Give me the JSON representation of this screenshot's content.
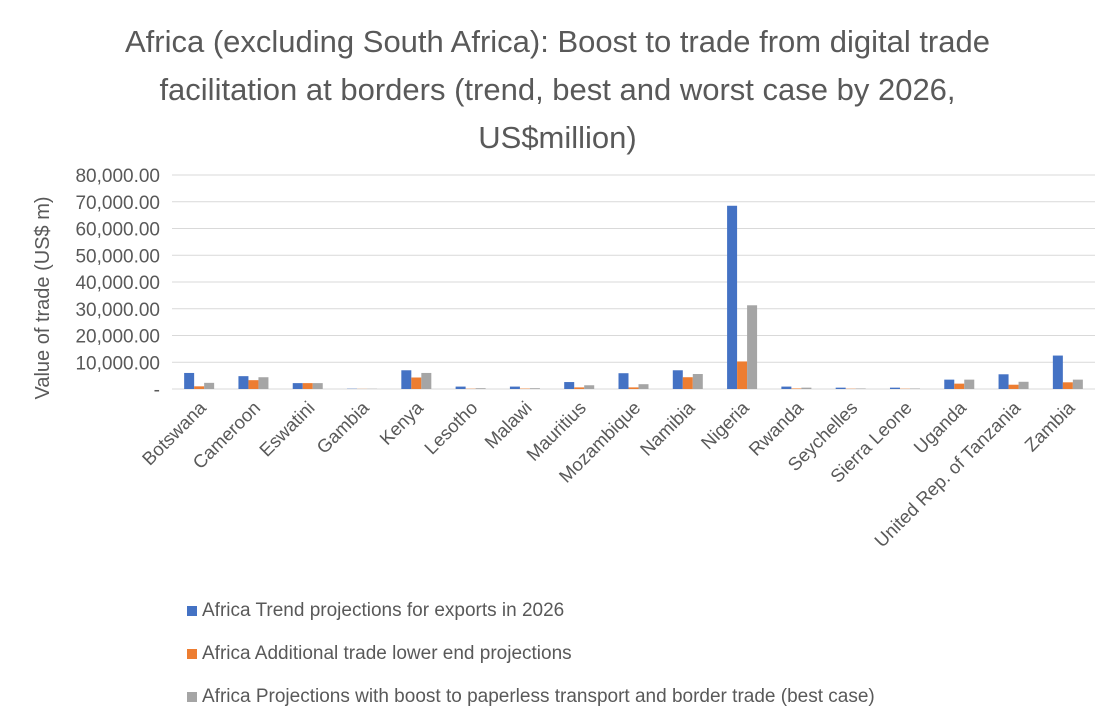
{
  "chart_data": {
    "type": "bar",
    "title": "Africa (excluding South Africa): Boost to trade from digital trade facilitation at borders (trend, best and worst case by 2026, US$million)",
    "xlabel": "",
    "ylabel": "Value of trade (US$ m)",
    "ylim": [
      0,
      80000
    ],
    "yticks": [
      0,
      10000,
      20000,
      30000,
      40000,
      50000,
      60000,
      70000,
      80000
    ],
    "ytick_labels": [
      "-",
      "10,000.00",
      "20,000.00",
      "30,000.00",
      "40,000.00",
      "50,000.00",
      "60,000.00",
      "70,000.00",
      "80,000.00"
    ],
    "grid": true,
    "legend_position": "bottom",
    "categories": [
      "Botswana",
      "Cameroon",
      "Eswatini",
      "Gambia",
      "Kenya",
      "Lesotho",
      "Malawi",
      "Mauritius",
      "Mozambique",
      "Namibia",
      "Nigeria",
      "Rwanda",
      "Seychelles",
      "Sierra Leone",
      "Uganda",
      "United Rep. of Tanzania",
      "Zambia"
    ],
    "series": [
      {
        "name": "Africa Trend projections for exports in 2026",
        "color": "#4472C4",
        "values": [
          6000,
          4800,
          2200,
          100,
          7000,
          900,
          900,
          2600,
          5900,
          7000,
          68500,
          900,
          500,
          500,
          3500,
          5500,
          12500
        ]
      },
      {
        "name": "Africa Additional trade lower end projections",
        "color": "#ED7D31",
        "values": [
          1000,
          3300,
          2200,
          50,
          4300,
          100,
          150,
          600,
          600,
          4400,
          10300,
          200,
          100,
          100,
          2000,
          1600,
          2500
        ]
      },
      {
        "name": "Africa Projections with boost to paperless transport and border trade (best case)",
        "color": "#A5A5A5",
        "values": [
          2300,
          4400,
          2200,
          80,
          6000,
          300,
          300,
          1400,
          1800,
          5600,
          31300,
          500,
          200,
          200,
          3500,
          2700,
          3500
        ]
      }
    ]
  }
}
